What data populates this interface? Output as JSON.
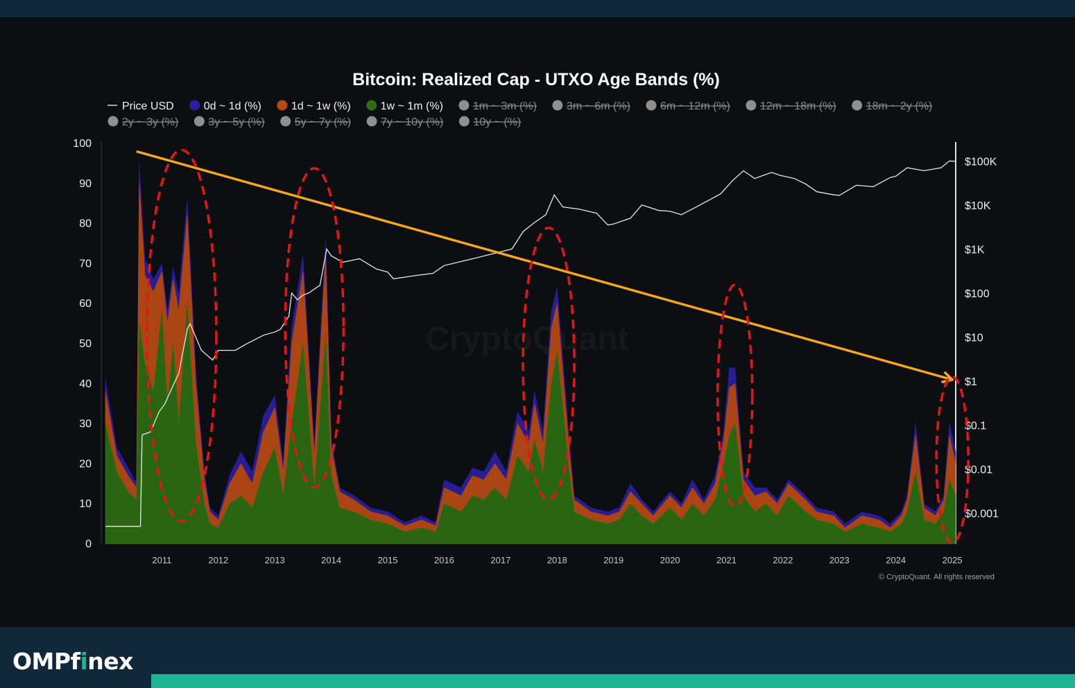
{
  "brand": {
    "name_prefix": "OMPf",
    "name_i": "i",
    "name_suffix": "nex"
  },
  "chart_data": {
    "type": "area",
    "title": "Bitcoin: Realized Cap - UTXO Age Bands (%)",
    "watermark": "CryptoQuant",
    "copyright": "© CryptoQuant. All rights reserved",
    "legend_placement": "top",
    "legend": [
      {
        "name": "Price USD",
        "marker": "line",
        "active": true,
        "color": "#d9d9d9"
      },
      {
        "name": "0d ~ 1d (%)",
        "active": true,
        "color": "#2a1fa0"
      },
      {
        "name": "1d ~ 1w (%)",
        "active": true,
        "color": "#b84a14"
      },
      {
        "name": "1w ~ 1m (%)",
        "active": true,
        "color": "#2d6e12"
      },
      {
        "name": "1m ~ 3m (%)",
        "active": false,
        "color": "#8f8f8f"
      },
      {
        "name": "3m ~ 6m (%)",
        "active": false,
        "color": "#8f8f8f"
      },
      {
        "name": "6m ~ 12m (%)",
        "active": false,
        "color": "#8f8f8f"
      },
      {
        "name": "12m ~ 18m (%)",
        "active": false,
        "color": "#8f8f8f"
      },
      {
        "name": "18m ~ 2y (%)",
        "active": false,
        "color": "#8f8f8f"
      },
      {
        "name": "2y ~ 3y (%)",
        "active": false,
        "color": "#8f8f8f"
      },
      {
        "name": "3y ~ 5y (%)",
        "active": false,
        "color": "#8f8f8f"
      },
      {
        "name": "5y ~ 7y (%)",
        "active": false,
        "color": "#8f8f8f"
      },
      {
        "name": "7y ~ 10y (%)",
        "active": false,
        "color": "#8f8f8f"
      },
      {
        "name": "10y ~ (%)",
        "active": false,
        "color": "#8f8f8f"
      }
    ],
    "x_ticks": [
      "2011",
      "2012",
      "2013",
      "2014",
      "2015",
      "2016",
      "2017",
      "2018",
      "2019",
      "2020",
      "2021",
      "2022",
      "2023",
      "2024",
      "2025"
    ],
    "xlim": [
      2010.0,
      2025.06
    ],
    "y_left": {
      "ticks": [
        "0",
        "10",
        "20",
        "30",
        "40",
        "50",
        "60",
        "70",
        "80",
        "90",
        "100"
      ],
      "ylim": [
        0,
        100
      ]
    },
    "y_right": {
      "scale": "log",
      "ticks": [
        "$0.001",
        "$0.01",
        "$0.1",
        "$1",
        "$10",
        "$100",
        "$1K",
        "$10K",
        "$100K"
      ],
      "values": [
        0.001,
        0.01,
        0.1,
        1,
        10,
        100,
        1000,
        10000,
        100000
      ],
      "ylim": [
        0.0002,
        250000
      ]
    },
    "series": [
      {
        "name": "1w ~ 1m (%)",
        "color": "#2d6e12",
        "x": [
          2010.0,
          2010.2,
          2010.4,
          2010.55,
          2010.6,
          2010.7,
          2010.85,
          2011.0,
          2011.1,
          2011.2,
          2011.3,
          2011.45,
          2011.6,
          2011.75,
          2011.85,
          2012.0,
          2012.2,
          2012.4,
          2012.6,
          2012.8,
          2013.0,
          2013.15,
          2013.3,
          2013.5,
          2013.7,
          2013.9,
          2014.0,
          2014.15,
          2014.4,
          2014.7,
          2015.0,
          2015.3,
          2015.6,
          2015.85,
          2016.0,
          2016.3,
          2016.5,
          2016.7,
          2016.9,
          2017.1,
          2017.3,
          2017.5,
          2017.6,
          2017.75,
          2017.9,
          2018.0,
          2018.2,
          2018.3,
          2018.6,
          2018.9,
          2019.1,
          2019.3,
          2019.5,
          2019.7,
          2020.0,
          2020.2,
          2020.4,
          2020.6,
          2020.8,
          2020.95,
          2021.05,
          2021.15,
          2021.3,
          2021.5,
          2021.7,
          2021.9,
          2022.1,
          2022.4,
          2022.6,
          2022.9,
          2023.1,
          2023.4,
          2023.7,
          2023.9,
          2024.1,
          2024.2,
          2024.35,
          2024.5,
          2024.7,
          2024.85,
          2024.95,
          2025.06
        ],
        "values": [
          30,
          18,
          13,
          11,
          55,
          45,
          38,
          58,
          35,
          50,
          30,
          60,
          25,
          10,
          5,
          4,
          10,
          12,
          9,
          18,
          24,
          12,
          30,
          50,
          14,
          52,
          17,
          9,
          8,
          6,
          5,
          3,
          4,
          3,
          10,
          8,
          12,
          11,
          14,
          11,
          22,
          18,
          26,
          18,
          40,
          48,
          20,
          8,
          6,
          5,
          6,
          10,
          7,
          5,
          9,
          6,
          10,
          7,
          11,
          20,
          27,
          30,
          12,
          8,
          10,
          7,
          12,
          8,
          6,
          5,
          3,
          5,
          4,
          3,
          5,
          8,
          18,
          6,
          5,
          8,
          16,
          12
        ]
      },
      {
        "name": "1d ~ 1w (%)",
        "color": "#b84a14",
        "x": [
          2010.0,
          2010.2,
          2010.4,
          2010.55,
          2010.6,
          2010.7,
          2010.85,
          2011.0,
          2011.1,
          2011.2,
          2011.3,
          2011.45,
          2011.6,
          2011.75,
          2011.85,
          2012.0,
          2012.2,
          2012.4,
          2012.6,
          2012.8,
          2013.0,
          2013.15,
          2013.3,
          2013.5,
          2013.7,
          2013.9,
          2014.0,
          2014.15,
          2014.4,
          2014.7,
          2015.0,
          2015.3,
          2015.6,
          2015.85,
          2016.0,
          2016.3,
          2016.5,
          2016.7,
          2016.9,
          2017.1,
          2017.3,
          2017.5,
          2017.6,
          2017.75,
          2017.9,
          2018.0,
          2018.2,
          2018.3,
          2018.6,
          2018.9,
          2019.1,
          2019.3,
          2019.5,
          2019.7,
          2020.0,
          2020.2,
          2020.4,
          2020.6,
          2020.8,
          2020.95,
          2021.05,
          2021.15,
          2021.3,
          2021.5,
          2021.7,
          2021.9,
          2022.1,
          2022.4,
          2022.6,
          2022.9,
          2023.1,
          2023.4,
          2023.7,
          2023.9,
          2024.1,
          2024.2,
          2024.35,
          2024.5,
          2024.7,
          2024.85,
          2024.95,
          2025.06
        ],
        "values": [
          8,
          4,
          4,
          3,
          35,
          22,
          25,
          10,
          20,
          16,
          28,
          22,
          15,
          6,
          3,
          2,
          5,
          8,
          6,
          10,
          10,
          6,
          20,
          18,
          8,
          20,
          7,
          4,
          3,
          2,
          2,
          1.5,
          2,
          1.5,
          4,
          4,
          5,
          5,
          6,
          5,
          8,
          7,
          9,
          7,
          14,
          12,
          6,
          3,
          2,
          2,
          2,
          3,
          3,
          2,
          3,
          3,
          4,
          3,
          4,
          6,
          12,
          10,
          4,
          4,
          3,
          3,
          3,
          3,
          2,
          2,
          1,
          2,
          2,
          1,
          2,
          3,
          9,
          3,
          2,
          3,
          11,
          8
        ]
      },
      {
        "name": "0d ~ 1d (%)",
        "color": "#2a1fa0",
        "x": [
          2010.0,
          2010.2,
          2010.4,
          2010.55,
          2010.6,
          2010.7,
          2010.85,
          2011.0,
          2011.1,
          2011.2,
          2011.3,
          2011.45,
          2011.6,
          2011.75,
          2011.85,
          2012.0,
          2012.2,
          2012.4,
          2012.6,
          2012.8,
          2013.0,
          2013.15,
          2013.3,
          2013.5,
          2013.7,
          2013.9,
          2014.0,
          2014.15,
          2014.4,
          2014.7,
          2015.0,
          2015.3,
          2015.6,
          2015.85,
          2016.0,
          2016.3,
          2016.5,
          2016.7,
          2016.9,
          2017.1,
          2017.3,
          2017.5,
          2017.6,
          2017.75,
          2017.9,
          2018.0,
          2018.2,
          2018.3,
          2018.6,
          2018.9,
          2019.1,
          2019.3,
          2019.5,
          2019.7,
          2020.0,
          2020.2,
          2020.4,
          2020.6,
          2020.8,
          2020.95,
          2021.05,
          2021.15,
          2021.3,
          2021.5,
          2021.7,
          2021.9,
          2022.1,
          2022.4,
          2022.6,
          2022.9,
          2023.1,
          2023.4,
          2023.7,
          2023.9,
          2024.1,
          2024.2,
          2024.35,
          2024.5,
          2024.7,
          2024.85,
          2024.95,
          2025.06
        ],
        "values": [
          3,
          2,
          2,
          1,
          5,
          4,
          3,
          2,
          3,
          3,
          4,
          4,
          3,
          2,
          1,
          1,
          2,
          3,
          3,
          4,
          3,
          2,
          4,
          4,
          2,
          4,
          2,
          1,
          1,
          1,
          1,
          0.8,
          1,
          0.8,
          2,
          2,
          2,
          2,
          3,
          2,
          3,
          3,
          3,
          3,
          4,
          4,
          3,
          1,
          1,
          1,
          1,
          2,
          1,
          1,
          1,
          1,
          2,
          1,
          2,
          2,
          5,
          4,
          2,
          2,
          1,
          1,
          1,
          1,
          1,
          1,
          1,
          1,
          1,
          1,
          1,
          1,
          3,
          1,
          1,
          1,
          3,
          3
        ]
      }
    ],
    "price_usd": {
      "name": "Price USD",
      "x": [
        2010.0,
        2010.3,
        2010.55,
        2010.62,
        2010.65,
        2010.8,
        2010.95,
        2011.05,
        2011.2,
        2011.3,
        2011.45,
        2011.5,
        2011.7,
        2011.9,
        2012.0,
        2012.3,
        2012.5,
        2012.8,
        2013.0,
        2013.1,
        2013.25,
        2013.3,
        2013.4,
        2013.5,
        2013.6,
        2013.8,
        2013.92,
        2014.0,
        2014.2,
        2014.5,
        2014.8,
        2015.0,
        2015.1,
        2015.5,
        2015.8,
        2016.0,
        2016.5,
        2016.9,
        2017.2,
        2017.4,
        2017.6,
        2017.8,
        2017.95,
        2018.1,
        2018.4,
        2018.7,
        2018.9,
        2019.0,
        2019.3,
        2019.5,
        2019.8,
        2020.0,
        2020.2,
        2020.5,
        2020.9,
        2021.1,
        2021.3,
        2021.5,
        2021.8,
        2021.95,
        2022.2,
        2022.4,
        2022.6,
        2022.9,
        2023.0,
        2023.3,
        2023.6,
        2023.9,
        2024.0,
        2024.2,
        2024.5,
        2024.8,
        2024.95,
        2025.06
      ],
      "values": [
        0.0005,
        0.0005,
        0.0005,
        0.0005,
        0.06,
        0.07,
        0.2,
        0.3,
        0.8,
        1.5,
        15,
        20,
        5,
        3,
        5,
        5,
        7,
        11,
        13,
        15,
        30,
        100,
        70,
        90,
        100,
        150,
        1000,
        700,
        500,
        600,
        350,
        300,
        210,
        250,
        280,
        420,
        600,
        800,
        1000,
        2500,
        4000,
        6000,
        17000,
        9000,
        8000,
        6500,
        3500,
        3700,
        5000,
        10000,
        7500,
        7200,
        6000,
        9500,
        18000,
        35000,
        60000,
        40000,
        55000,
        47000,
        40000,
        30000,
        20000,
        17000,
        16500,
        28000,
        26000,
        42000,
        45000,
        70000,
        60000,
        70000,
        100000,
        98000
      ]
    },
    "annotations": {
      "trend_line": {
        "color": "#f5a623",
        "from": {
          "x": 2010.55,
          "y": 98
        },
        "to": {
          "x": 2025.0,
          "y": 41
        }
      },
      "highlight_ellipses": [
        {
          "x": 2011.35,
          "y_center": 52
        },
        {
          "x": 2013.7,
          "y_center": 54
        },
        {
          "x": 2017.85,
          "y_center": 45
        },
        {
          "x": 2021.15,
          "y_center": 37
        },
        {
          "x": 2025.0,
          "y_center": 21
        }
      ]
    }
  }
}
